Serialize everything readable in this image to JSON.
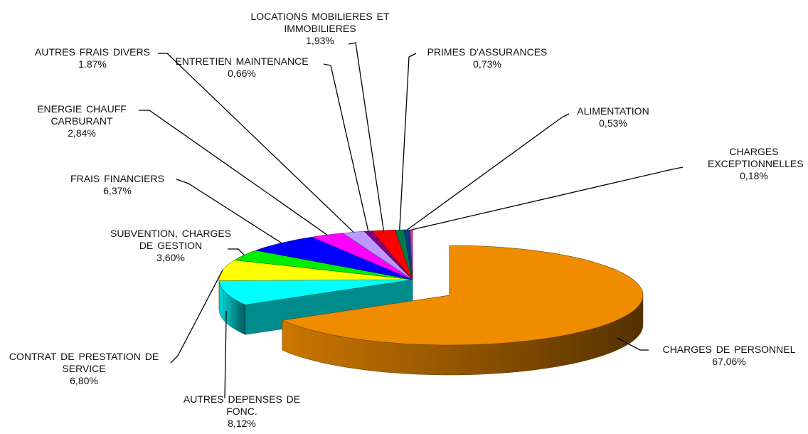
{
  "chart_data": {
    "type": "pie",
    "categories": [
      "CHARGES DE PERSONNEL",
      "AUTRES DEPENSES DE FONC.",
      "CONTRAT DE PRESTATION DE SERVICE",
      "SUBVENTION, CHARGES DE GESTION",
      "FRAIS FINANCIERS",
      "ENERGIE CHAUFF CARBURANT",
      "AUTRES FRAIS DIVERS",
      "ENTRETIEN MAINTENANCE",
      "LOCATIONS MOBILIERES ET IMMOBILIERES",
      "PRIMES D'ASSURANCES",
      "ALIMENTATION",
      "CHARGES EXCEPTIONNELLES"
    ],
    "values": [
      67.06,
      8.12,
      6.8,
      3.6,
      6.37,
      2.84,
      1.87,
      0.66,
      1.93,
      0.73,
      0.53,
      0.18
    ],
    "value_labels": [
      "67,06%",
      "8,12%",
      "6,80%",
      "3,60%",
      "6,37%",
      "2,84%",
      "1.87%",
      "0,66%",
      "1,93%",
      "0,73%",
      "0,53%",
      "0,18%"
    ],
    "colors": [
      "#f08c00",
      "#00ffff",
      "#ffff00",
      "#00ee00",
      "#0000ff",
      "#ff00ff",
      "#bb99ff",
      "#800080",
      "#ff0000",
      "#007a4d",
      "#0a3a8a",
      "#ff3399"
    ]
  }
}
